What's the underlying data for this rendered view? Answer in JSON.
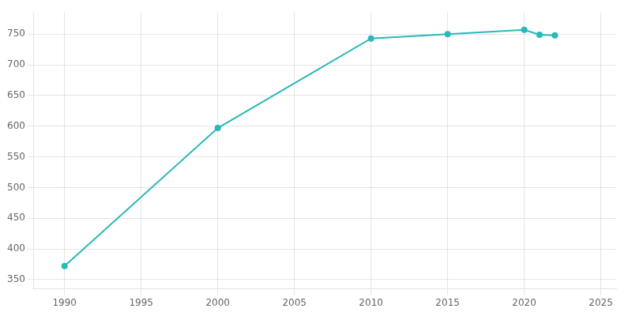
{
  "chart_data": {
    "type": "line",
    "x": [
      1990,
      2000,
      2010,
      2015,
      2020,
      2021,
      2022
    ],
    "values": [
      372,
      597,
      743,
      750,
      757,
      749,
      748
    ],
    "color": "#2ab8b8",
    "marker": "circle",
    "xlim": [
      1988,
      2026
    ],
    "xticks": [
      1990,
      1995,
      2000,
      2005,
      2010,
      2015,
      2020,
      2025
    ],
    "ylim": [
      335,
      785
    ],
    "yticks": [
      350,
      400,
      450,
      500,
      550,
      600,
      650,
      700,
      750
    ],
    "grid": true
  }
}
